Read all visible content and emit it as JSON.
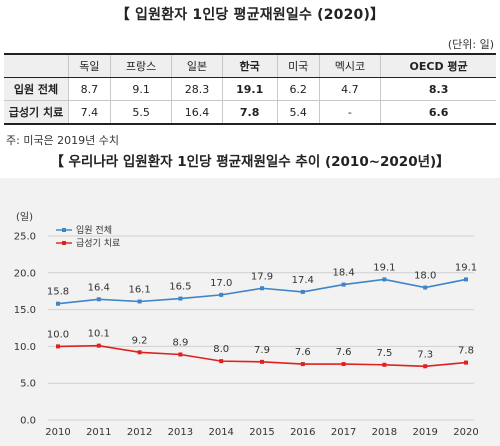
{
  "title": "【 입원환자 1인당 평균재원일수 (2020)】",
  "unit_note": "(단위: 일)",
  "table": {
    "columns": [
      "",
      "독일",
      "프랑스",
      "일본",
      "한국",
      "미국",
      "멕시코",
      "OECD 평균"
    ],
    "rows": [
      {
        "label": "입원 전체",
        "values": [
          "8.7",
          "9.1",
          "28.3",
          "19.1",
          "6.2",
          "4.7",
          "8.3"
        ]
      },
      {
        "label": "급성기 치료",
        "values": [
          "7.4",
          "5.5",
          "16.4",
          "7.8",
          "5.4",
          "-",
          "6.6"
        ]
      }
    ]
  },
  "footnote": "주: 미국은 2019년 수치",
  "chart_title": "【 우리나라 입원환자 1인당 평균재원일수 추이 (2010~2020년)】",
  "colors": {
    "series1": "#3f84c8",
    "series2": "#e02020",
    "grid": "#d0d0d0",
    "chart_bg": "#f2f2f2"
  },
  "chart_data": {
    "type": "line",
    "ylabel": "(일)",
    "x": [
      "2010",
      "2011",
      "2012",
      "2013",
      "2014",
      "2015",
      "2016",
      "2017",
      "2018",
      "2019",
      "2020"
    ],
    "ylim": [
      0,
      25
    ],
    "yticks": [
      "0.0",
      "5.0",
      "10.0",
      "15.0",
      "20.0",
      "25.0"
    ],
    "legend_position": "top-left",
    "series": [
      {
        "name": "입원 전체",
        "values": [
          15.8,
          16.4,
          16.1,
          16.5,
          17.0,
          17.9,
          17.4,
          18.4,
          19.1,
          18.0,
          19.1
        ],
        "labels": [
          "15.8",
          "16.4",
          "16.1",
          "16.5",
          "17.0",
          "17.9",
          "17.4",
          "18.4",
          "19.1",
          "18.0",
          "19.1"
        ]
      },
      {
        "name": "급성기 치료",
        "values": [
          10.0,
          10.1,
          9.2,
          8.9,
          8.0,
          7.9,
          7.6,
          7.6,
          7.5,
          7.3,
          7.8
        ],
        "labels": [
          "10.0",
          "10.1",
          "9.2",
          "8.9",
          "8.0",
          "7.9",
          "7.6",
          "7.6",
          "7.5",
          "7.3",
          "7.8"
        ]
      }
    ]
  }
}
